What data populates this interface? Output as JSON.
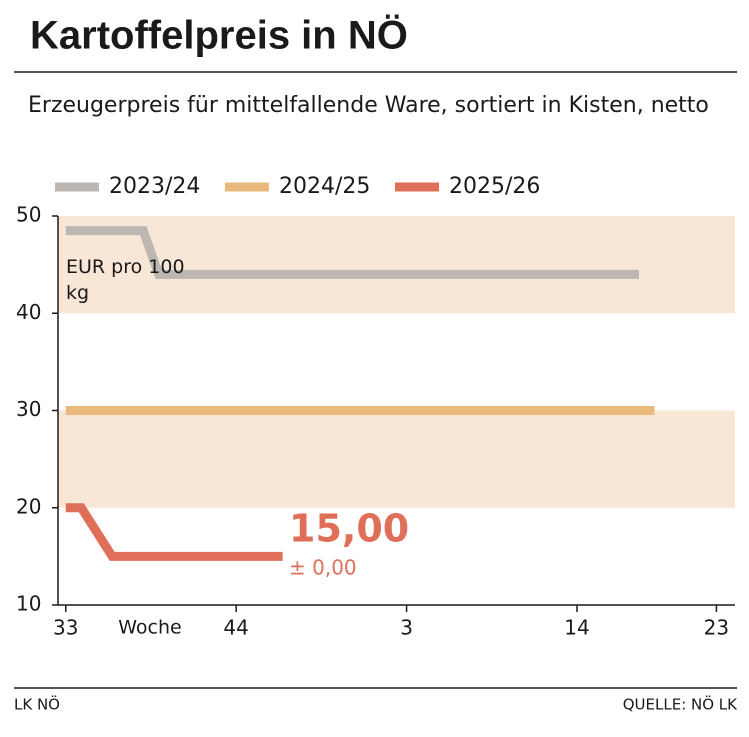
{
  "chart_data": {
    "type": "line",
    "title": "Kartoffelpreis in NÖ",
    "subtitle": "Erzeugerpreis für mittelfallende Ware, sortiert in Kisten, netto",
    "y_label": "EUR pro 100 kg",
    "x_label": "Woche",
    "xlim": [
      32.5,
      76.2
    ],
    "xticks": [
      33,
      44,
      {
        "value": 55,
        "label": "3"
      },
      {
        "value": 66,
        "label": "14"
      },
      {
        "value": 75,
        "label": "23"
      }
    ],
    "ylim": [
      10,
      50
    ],
    "yticks": [
      10,
      20,
      30,
      40,
      50
    ],
    "bands": [
      [
        40,
        50
      ],
      [
        20,
        30
      ]
    ],
    "band_color": "#f8e6d6",
    "series": [
      {
        "name": "2023/24",
        "color": "#bcb7b3",
        "x": [
          33,
          38,
          39,
          70
        ],
        "values": [
          48.5,
          48.5,
          44,
          44
        ]
      },
      {
        "name": "2024/25",
        "color": "#e9b97c",
        "x": [
          33,
          71
        ],
        "values": [
          30,
          30
        ]
      },
      {
        "name": "2025/26",
        "color": "#e06f59",
        "x": [
          33,
          34,
          36,
          47
        ],
        "values": [
          20,
          20,
          15,
          15
        ]
      }
    ],
    "annotation": {
      "value": 15,
      "label": "15,00",
      "change": "± 0,00"
    },
    "footer_left": "LK NÖ",
    "footer_right": "QUELLE: NÖ LK"
  }
}
